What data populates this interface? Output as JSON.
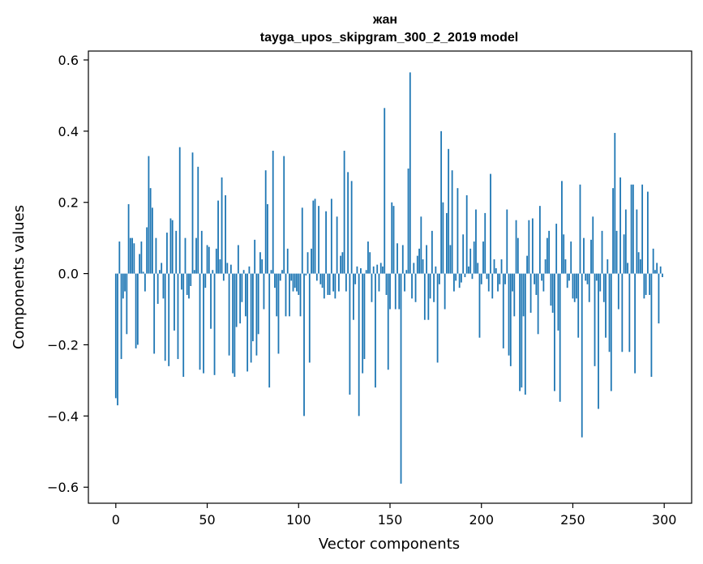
{
  "chart_data": {
    "type": "bar",
    "title": "жан",
    "subtitle": "tayga_upos_skipgram_300_2_2019 model",
    "xlabel": "Vector components",
    "ylabel": "Components values",
    "xlim": [
      -15,
      315
    ],
    "ylim": [
      -0.645,
      0.625
    ],
    "xticks": [
      0,
      50,
      100,
      150,
      200,
      250,
      300
    ],
    "xtick_labels": [
      "0",
      "50",
      "100",
      "150",
      "200",
      "250",
      "300"
    ],
    "yticks": [
      -0.6,
      -0.4,
      -0.2,
      0.0,
      0.2,
      0.4,
      0.6
    ],
    "ytick_labels": [
      "−0.6",
      "−0.4",
      "−0.2",
      "0.0",
      "0.2",
      "0.4",
      "0.6"
    ],
    "grid": false,
    "bar_color": "#1f77b4",
    "x": "indices 0..299",
    "values": [
      -0.35,
      -0.37,
      0.09,
      -0.24,
      -0.07,
      -0.05,
      -0.17,
      0.195,
      0.1,
      0.1,
      0.085,
      -0.21,
      -0.2,
      0.055,
      0.09,
      0.005,
      -0.05,
      0.13,
      0.33,
      0.24,
      0.185,
      -0.225,
      0.1,
      -0.085,
      0.01,
      0.03,
      -0.07,
      -0.245,
      0.115,
      -0.26,
      0.155,
      0.15,
      -0.16,
      0.12,
      -0.24,
      0.355,
      -0.045,
      -0.29,
      0.1,
      -0.06,
      -0.07,
      -0.035,
      0.34,
      0.01,
      0.1,
      0.3,
      -0.27,
      0.12,
      -0.28,
      -0.04,
      0.08,
      0.075,
      -0.155,
      0.01,
      -0.285,
      0.07,
      0.205,
      0.04,
      0.27,
      -0.02,
      0.22,
      0.03,
      -0.23,
      0.025,
      -0.28,
      -0.29,
      -0.15,
      0.08,
      -0.14,
      -0.08,
      0.01,
      -0.12,
      -0.275,
      0.02,
      -0.25,
      -0.19,
      0.095,
      -0.23,
      -0.17,
      0.06,
      0.04,
      -0.1,
      0.29,
      0.195,
      -0.32,
      0.01,
      0.345,
      -0.04,
      -0.12,
      -0.225,
      -0.02,
      0.01,
      0.33,
      -0.12,
      0.07,
      -0.12,
      -0.02,
      -0.05,
      -0.04,
      -0.05,
      -0.06,
      -0.12,
      0.185,
      -0.4,
      -0.005,
      0.06,
      -0.25,
      0.07,
      0.205,
      0.21,
      -0.02,
      0.19,
      -0.03,
      -0.04,
      -0.07,
      0.175,
      -0.06,
      -0.06,
      0.21,
      -0.05,
      -0.07,
      0.16,
      -0.05,
      0.05,
      0.06,
      0.345,
      -0.05,
      0.285,
      -0.34,
      0.26,
      -0.13,
      -0.03,
      0.02,
      -0.4,
      0.015,
      -0.28,
      -0.24,
      0.01,
      0.09,
      0.06,
      -0.08,
      0.02,
      -0.32,
      0.025,
      -0.05,
      0.03,
      0.02,
      0.465,
      -0.06,
      -0.27,
      -0.1,
      0.2,
      0.19,
      -0.1,
      0.085,
      -0.1,
      -0.59,
      0.08,
      -0.05,
      0.01,
      0.295,
      0.565,
      -0.07,
      0.03,
      -0.08,
      0.05,
      0.07,
      0.16,
      0.04,
      -0.13,
      0.08,
      -0.13,
      -0.07,
      0.12,
      -0.08,
      0.02,
      -0.25,
      -0.03,
      0.4,
      0.2,
      -0.1,
      0.17,
      0.35,
      0.08,
      0.29,
      -0.05,
      -0.02,
      0.24,
      -0.04,
      -0.025,
      0.11,
      -0.01,
      0.22,
      0.02,
      0.07,
      -0.015,
      0.09,
      0.18,
      0.03,
      -0.18,
      -0.03,
      0.09,
      0.17,
      -0.015,
      -0.05,
      0.28,
      -0.07,
      0.04,
      0.015,
      -0.05,
      -0.03,
      0.04,
      -0.21,
      -0.03,
      0.18,
      -0.23,
      -0.26,
      -0.05,
      -0.12,
      0.15,
      0.1,
      -0.33,
      -0.32,
      -0.12,
      -0.34,
      0.05,
      0.15,
      -0.11,
      0.155,
      -0.03,
      -0.06,
      -0.17,
      0.19,
      -0.02,
      -0.05,
      0.04,
      0.1,
      0.12,
      -0.09,
      -0.11,
      -0.33,
      0.14,
      -0.16,
      -0.36,
      0.26,
      0.11,
      0.04,
      -0.04,
      -0.02,
      0.09,
      -0.07,
      -0.08,
      -0.07,
      -0.18,
      0.25,
      -0.46,
      0.1,
      -0.02,
      -0.03,
      -0.08,
      0.095,
      0.16,
      -0.26,
      -0.02,
      -0.38,
      -0.05,
      0.12,
      -0.08,
      -0.18,
      0.04,
      -0.22,
      -0.33,
      0.24,
      0.395,
      0.12,
      -0.1,
      0.27,
      -0.22,
      0.11,
      0.18,
      0.03,
      -0.22,
      0.25,
      0.25,
      -0.28,
      0.18,
      0.06,
      0.04,
      0.25,
      -0.07,
      -0.06,
      0.23,
      -0.06,
      -0.29,
      0.07,
      0.01,
      0.03,
      -0.14,
      0.02,
      -0.01
    ]
  }
}
